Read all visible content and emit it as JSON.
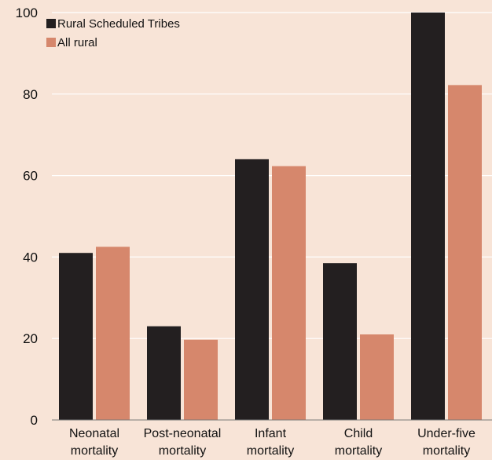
{
  "chart_data": {
    "type": "bar",
    "categories": [
      [
        "Neonatal",
        "mortality"
      ],
      [
        "Post-neonatal",
        "mortality"
      ],
      [
        "Infant",
        "mortality"
      ],
      [
        "Child",
        "mortality"
      ],
      [
        "Under-five",
        "mortality"
      ]
    ],
    "series": [
      {
        "name": "Rural Scheduled Tribes",
        "color": "#231f20",
        "values": [
          41,
          23,
          64,
          38.5,
          100
        ]
      },
      {
        "name": "All rural",
        "color": "#d6876c",
        "values": [
          42.5,
          19.7,
          62.3,
          21,
          82.2
        ]
      }
    ],
    "ylim": [
      0,
      100
    ],
    "yticks": [
      "0",
      "20",
      "40",
      "60",
      "80",
      "100"
    ],
    "grid": true,
    "legend_position": "top-left",
    "title": "",
    "xlabel": "",
    "ylabel": ""
  }
}
